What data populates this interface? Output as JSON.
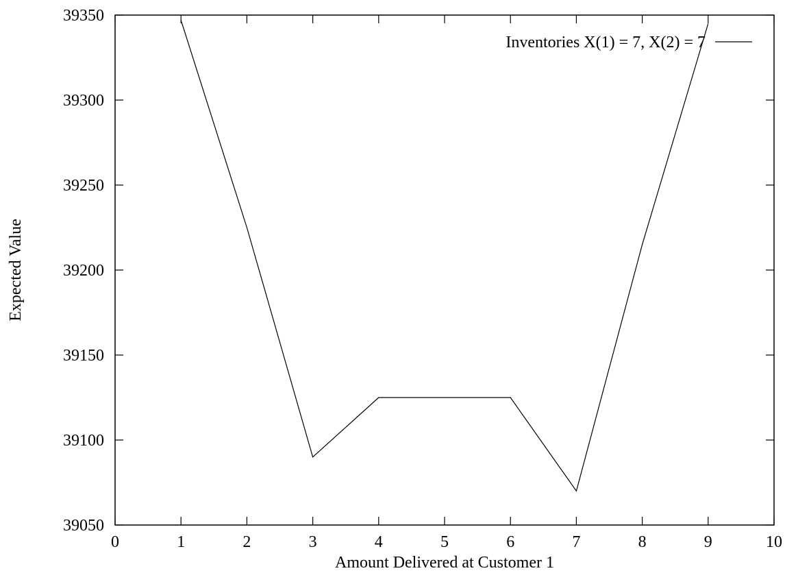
{
  "chart_data": {
    "type": "line",
    "title": "",
    "xlabel": "Amount Delivered at Customer 1",
    "ylabel": "Expected Value",
    "xlim": [
      0,
      10
    ],
    "ylim": [
      39050,
      39350
    ],
    "x_ticks": [
      "0",
      "1",
      "2",
      "3",
      "4",
      "5",
      "6",
      "7",
      "8",
      "9",
      "10"
    ],
    "y_ticks": [
      "39050",
      "39100",
      "39150",
      "39200",
      "39250",
      "39300",
      "39350"
    ],
    "grid": false,
    "legend_position": "top-right",
    "series": [
      {
        "name": "Inventories X(1) = 7, X(2) = 7",
        "color": "#000000",
        "x": [
          1,
          2,
          3,
          4,
          5,
          6,
          7,
          8,
          9
        ],
        "y": [
          39347,
          39225,
          39090,
          39125,
          39125,
          39125,
          39070,
          39215,
          39345
        ]
      }
    ]
  }
}
